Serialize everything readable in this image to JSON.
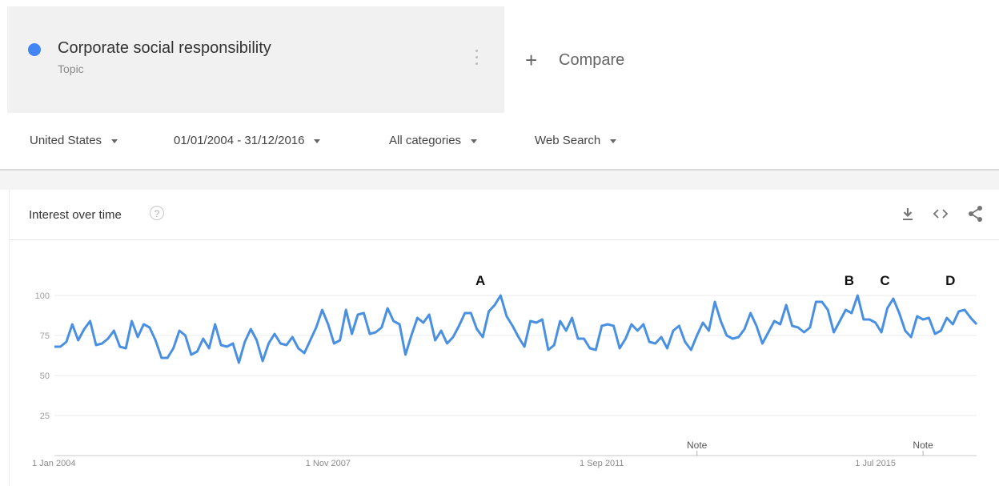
{
  "term": {
    "name": "Corporate social responsibility",
    "type": "Topic",
    "color": "#4285f4",
    "dot_icon": "circle-dot",
    "more_icon": "vertical-dots-icon"
  },
  "compare": {
    "icon": "plus-icon",
    "label": "Compare"
  },
  "filters": {
    "region": "United States",
    "date_range": "01/01/2004 - 31/12/2016",
    "category": "All categories",
    "property": "Web Search"
  },
  "card": {
    "title": "Interest over time",
    "help_icon": "?",
    "actions": [
      "download-icon",
      "embed-icon",
      "share-icon"
    ]
  },
  "chart_data": {
    "type": "line",
    "title": "",
    "xlabel": "",
    "ylabel": "",
    "ylim": [
      0,
      100
    ],
    "yticks": [
      25,
      50,
      75,
      100
    ],
    "grid": true,
    "xtick_labels": [
      "1 Jan 2004",
      "1 Nov 2007",
      "1 Sep 2011",
      "1 Jul 2015"
    ],
    "notes": [
      "Note",
      "Note"
    ],
    "annotations": [
      {
        "label": "A",
        "at_point": 72
      },
      {
        "label": "B",
        "at_point": 134
      },
      {
        "label": "C",
        "at_point": 140
      },
      {
        "label": "D",
        "at_point": 151
      }
    ],
    "series": [
      {
        "name": "Corporate social responsibility",
        "color": "#4a90e2",
        "values": [
          68,
          68,
          71,
          82,
          72,
          79,
          84,
          69,
          70,
          73,
          78,
          68,
          67,
          84,
          74,
          82,
          80,
          72,
          61,
          61,
          67,
          78,
          75,
          63,
          65,
          73,
          67,
          82,
          69,
          68,
          70,
          58,
          71,
          79,
          72,
          59,
          70,
          76,
          70,
          69,
          74,
          67,
          64,
          72,
          80,
          91,
          82,
          70,
          72,
          91,
          76,
          88,
          89,
          76,
          77,
          80,
          92,
          84,
          82,
          63,
          75,
          86,
          83,
          88,
          72,
          78,
          70,
          74,
          81,
          89,
          89,
          79,
          74,
          90,
          94,
          100,
          87,
          81,
          74,
          68,
          84,
          83,
          85,
          66,
          69,
          84,
          78,
          86,
          73,
          73,
          67,
          66,
          81,
          82,
          81,
          67,
          73,
          82,
          78,
          82,
          71,
          70,
          74,
          67,
          78,
          81,
          71,
          66,
          75,
          83,
          78,
          96,
          84,
          75,
          73,
          74,
          79,
          89,
          81,
          70,
          77,
          84,
          82,
          94,
          81,
          80,
          77,
          80,
          96,
          96,
          91,
          77,
          84,
          91,
          89,
          100,
          85,
          85,
          83,
          77,
          92,
          98,
          89,
          78,
          74,
          87,
          85,
          86,
          76,
          78,
          86,
          82,
          90,
          91,
          86,
          82
        ]
      }
    ]
  }
}
